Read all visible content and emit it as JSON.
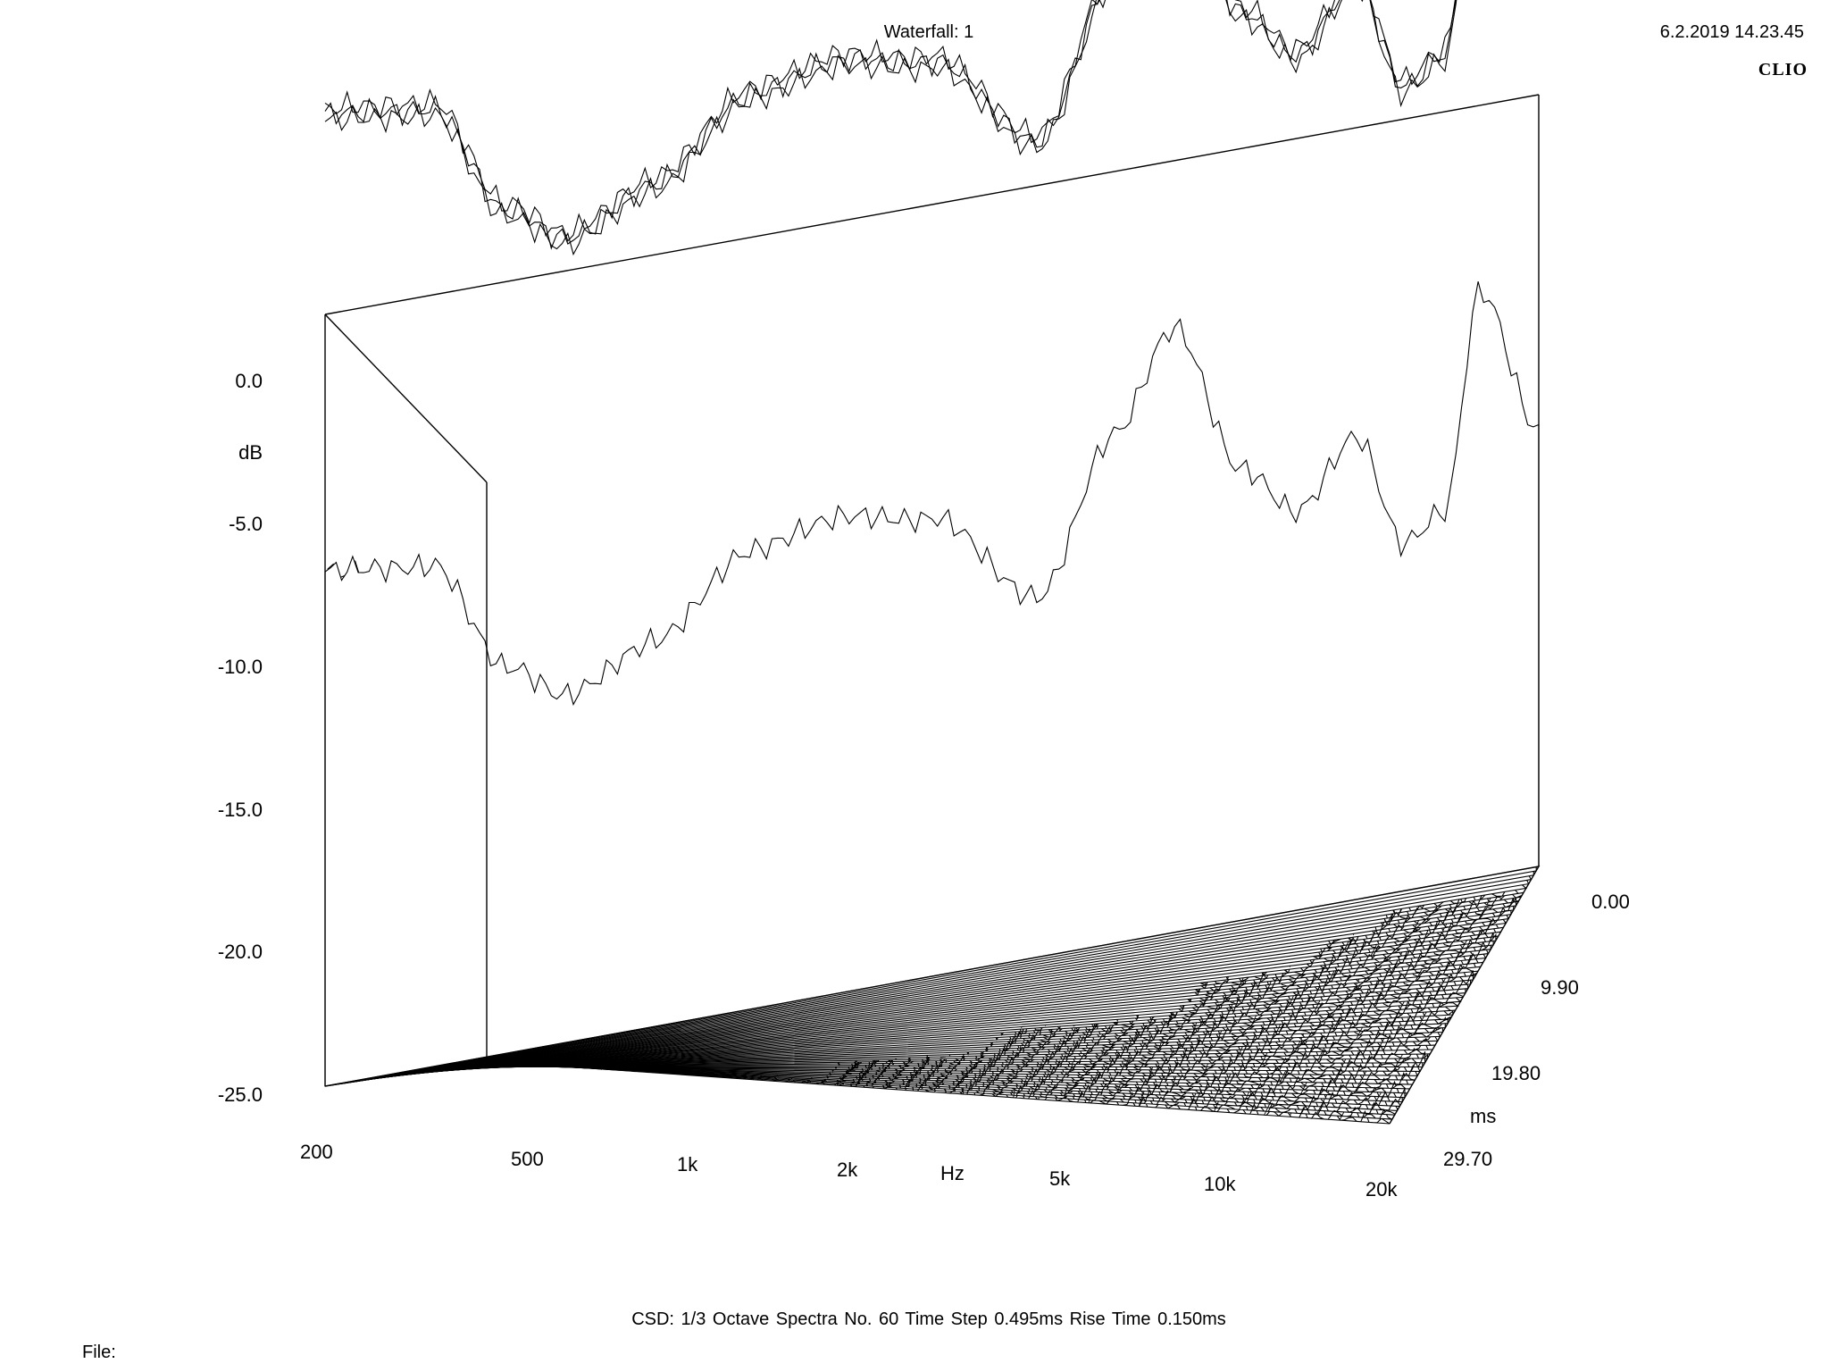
{
  "header": {
    "title": "Waterfall: 1",
    "datetime": "6.2.2019 14.23.45",
    "brand": "CLIO"
  },
  "footer": {
    "params": "CSD:   1/3 Octave   Spectra No. 60   Time Step 0.495ms   Rise Time 0.150ms",
    "file_label": "File:"
  },
  "chart_data": {
    "type": "waterfall",
    "title": "Waterfall: 1",
    "xlabel": "Hz",
    "ylabel": "dB",
    "zlabel": "ms",
    "x_scale": "log",
    "xlim": [
      200,
      20000
    ],
    "ylim": [
      -25,
      0
    ],
    "zlim": [
      0,
      29.7
    ],
    "x_ticks": [
      {
        "value": 200,
        "label": "200"
      },
      {
        "value": 500,
        "label": "500"
      },
      {
        "value": 1000,
        "label": "1k"
      },
      {
        "value": 2000,
        "label": "2k"
      },
      {
        "value": 5000,
        "label": "5k"
      },
      {
        "value": 10000,
        "label": "10k"
      },
      {
        "value": 20000,
        "label": "20k"
      }
    ],
    "y_ticks": [
      {
        "value": 0,
        "label": "0.0"
      },
      {
        "value": -5,
        "label": "-5.0"
      },
      {
        "value": -10,
        "label": "-10.0"
      },
      {
        "value": -15,
        "label": "-15.0"
      },
      {
        "value": -20,
        "label": "-20.0"
      },
      {
        "value": -25,
        "label": "-25.0"
      }
    ],
    "z_ticks": [
      {
        "value": 0,
        "label": "0.00"
      },
      {
        "value": 9.9,
        "label": "9.90"
      },
      {
        "value": 19.8,
        "label": "19.80"
      },
      {
        "value": 29.7,
        "label": "29.70"
      }
    ],
    "spectra_count": 60,
    "time_step_ms": 0.495,
    "rise_time_ms": 0.15,
    "smoothing": "1/3 Octave",
    "base_spectrum": {
      "freq": [
        200,
        300,
        400,
        500,
        700,
        1000,
        1400,
        2000,
        3000,
        4000,
        5000,
        6500,
        8000,
        10000,
        12000,
        14000,
        16000,
        20000
      ],
      "db": [
        -5,
        -5.5,
        -10,
        -11.5,
        -10,
        -7.2,
        -6.5,
        -7.2,
        -11,
        -5.2,
        -1.5,
        -7.5,
        -9.5,
        -7,
        -11.5,
        -10.5,
        -2.2,
        -8
      ]
    },
    "spectra_shown": [
      {
        "t": 0.0,
        "db": [
          -5,
          -5.5,
          -10,
          -11.5,
          -10,
          -7.2,
          -6.5,
          -7.2,
          -11,
          -5.2,
          -1.5,
          -7.5,
          -9.5,
          -7,
          -11.5,
          -10.5,
          -2.2,
          -8
        ]
      },
      {
        "t": 0.5,
        "db": [
          -5,
          -6,
          -10.5,
          -12,
          -11,
          -7.5,
          -6.8,
          -8,
          -13,
          -6,
          -2.5,
          -9.5,
          -12,
          -9,
          -14.5,
          -14,
          -4,
          -13
        ]
      },
      {
        "t": 1.0,
        "db": [
          -5.5,
          -6.5,
          -11,
          -12.5,
          -12,
          -8,
          -7.5,
          -9,
          -14.5,
          -8,
          -4.5,
          -12,
          -15,
          -12,
          -18,
          -20,
          -12,
          -25
        ]
      },
      {
        "t": 3.0,
        "db": [
          -6.5,
          -8,
          -12,
          -13.5,
          -13.5,
          -10,
          -10,
          -11,
          -16,
          -11,
          -9,
          -16,
          -19,
          -20,
          -25,
          -25,
          -25,
          -25
        ]
      },
      {
        "t": 6.0,
        "db": [
          -8,
          -10,
          -13,
          -14.5,
          -15,
          -12,
          -12,
          -13,
          -18,
          -14,
          -16,
          -20,
          -22,
          -25,
          -25,
          -25,
          -25,
          -25
        ]
      },
      {
        "t": 10.0,
        "db": [
          -10,
          -12.5,
          -15,
          -17,
          -17.5,
          -15,
          -16,
          -18,
          -22,
          -20,
          -23,
          -25,
          -25,
          -25,
          -25,
          -25,
          -25,
          -25
        ]
      },
      {
        "t": 16.0,
        "db": [
          -13,
          -16,
          -18,
          -21,
          -21,
          -19,
          -21,
          -23,
          -25,
          -25,
          -25,
          -25,
          -25,
          -25,
          -25,
          -25,
          -25,
          -25
        ]
      },
      {
        "t": 22.0,
        "db": [
          -16,
          -20,
          -21,
          -24,
          -24,
          -23,
          -25,
          -25,
          -25,
          -25,
          -25,
          -25,
          -25,
          -25,
          -25,
          -25,
          -25,
          -25
        ]
      },
      {
        "t": 29.7,
        "db": [
          -20,
          -24,
          -25,
          -25,
          -25,
          -25,
          -25,
          -25,
          -25,
          -25,
          -25,
          -25,
          -25,
          -25,
          -25,
          -25,
          -25,
          -25
        ]
      }
    ]
  }
}
